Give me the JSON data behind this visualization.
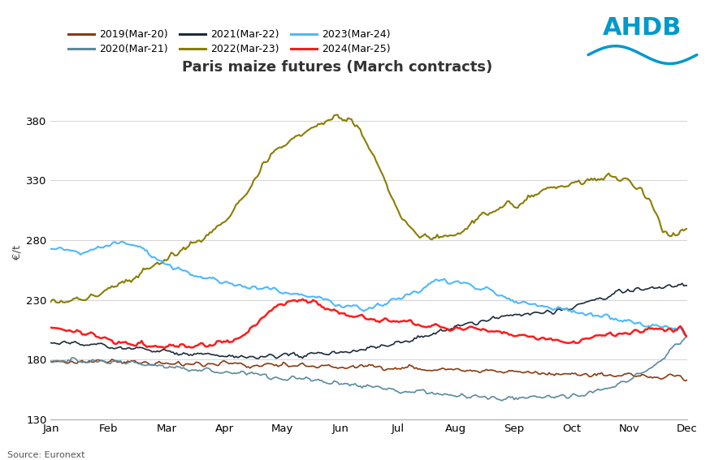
{
  "title": "Paris maize futures (March contracts)",
  "ylabel": "€/t",
  "source": "Source: Euronext",
  "ylim": [
    130,
    410
  ],
  "yticks": [
    130,
    180,
    230,
    280,
    330,
    380
  ],
  "months": [
    "Jan",
    "Feb",
    "Mar",
    "Apr",
    "May",
    "Jun",
    "Jul",
    "Aug",
    "Sep",
    "Oct",
    "Nov",
    "Dec"
  ],
  "background_color": "#FFFFFF",
  "grid_color": "#CCCCCC",
  "title_fontsize": 13,
  "axis_fontsize": 9.5,
  "legend_fontsize": 9,
  "series_order": [
    "2019(Mar-20)",
    "2020(Mar-21)",
    "2021(Mar-22)",
    "2022(Mar-23)",
    "2023(Mar-24)",
    "2024(Mar-25)"
  ],
  "series": {
    "2019(Mar-20)": {
      "color": "#8B3A0F",
      "linewidth": 1.2,
      "key_x": [
        0,
        15,
        30,
        45,
        60,
        75,
        90,
        105,
        120,
        135,
        150,
        165,
        180,
        195,
        210,
        225,
        240,
        255,
        270,
        285,
        300,
        315,
        330,
        345,
        364
      ],
      "key_y": [
        179,
        179,
        179,
        178,
        178,
        177,
        177,
        176,
        176,
        175,
        175,
        174,
        174,
        173,
        173,
        172,
        171,
        170,
        170,
        169,
        168,
        167,
        167,
        166,
        165
      ]
    },
    "2020(Mar-21)": {
      "color": "#5A8A9F",
      "linewidth": 1.2,
      "key_x": [
        0,
        15,
        30,
        45,
        60,
        75,
        90,
        105,
        120,
        135,
        150,
        165,
        180,
        195,
        210,
        225,
        240,
        255,
        270,
        285,
        300,
        315,
        330,
        345,
        364
      ],
      "key_y": [
        180,
        179,
        178,
        177,
        175,
        173,
        171,
        169,
        167,
        165,
        163,
        160,
        158,
        155,
        153,
        151,
        149,
        148,
        148,
        148,
        150,
        155,
        163,
        175,
        200
      ]
    },
    "2021(Mar-22)": {
      "color": "#1C2B3A",
      "linewidth": 1.2,
      "key_x": [
        0,
        15,
        30,
        45,
        60,
        75,
        90,
        105,
        120,
        135,
        150,
        165,
        180,
        195,
        210,
        225,
        240,
        255,
        270,
        285,
        300,
        315,
        330,
        345,
        364
      ],
      "key_y": [
        194,
        193,
        192,
        190,
        188,
        186,
        184,
        183,
        183,
        183,
        184,
        186,
        189,
        193,
        198,
        204,
        210,
        215,
        218,
        220,
        225,
        232,
        238,
        240,
        242
      ]
    },
    "2022(Mar-23)": {
      "color": "#8B7D00",
      "linewidth": 1.5,
      "key_x": [
        0,
        10,
        20,
        30,
        40,
        50,
        60,
        70,
        80,
        90,
        100,
        110,
        118,
        122,
        130,
        140,
        150,
        160,
        165,
        170,
        175,
        180,
        185,
        190,
        195,
        200,
        210,
        220,
        230,
        240,
        250,
        260,
        270,
        280,
        290,
        300,
        310,
        320,
        330,
        340,
        345,
        350,
        355,
        360,
        364
      ],
      "key_y": [
        228,
        229,
        232,
        237,
        244,
        252,
        260,
        268,
        275,
        285,
        298,
        315,
        332,
        345,
        355,
        365,
        375,
        381,
        383,
        381,
        375,
        362,
        350,
        333,
        315,
        300,
        285,
        282,
        285,
        295,
        302,
        308,
        313,
        320,
        325,
        328,
        330,
        333,
        330,
        318,
        305,
        287,
        283,
        286,
        290
      ]
    },
    "2023(Mar-24)": {
      "color": "#4DB8FF",
      "linewidth": 1.5,
      "key_x": [
        0,
        10,
        20,
        30,
        40,
        50,
        60,
        70,
        80,
        90,
        100,
        110,
        120,
        130,
        140,
        150,
        160,
        170,
        180,
        190,
        200,
        210,
        215,
        220,
        230,
        240,
        250,
        260,
        270,
        280,
        290,
        300,
        310,
        320,
        330,
        340,
        350,
        360,
        364
      ],
      "key_y": [
        273,
        272,
        270,
        275,
        278,
        275,
        265,
        258,
        252,
        248,
        244,
        242,
        240,
        238,
        235,
        232,
        228,
        225,
        222,
        225,
        232,
        238,
        243,
        248,
        245,
        242,
        238,
        232,
        228,
        225,
        222,
        220,
        218,
        215,
        212,
        210,
        208,
        205,
        200
      ]
    },
    "2024(Mar-25)": {
      "color": "#FF1A1A",
      "linewidth": 1.8,
      "key_x": [
        0,
        10,
        20,
        30,
        40,
        50,
        60,
        70,
        80,
        90,
        100,
        110,
        118,
        125,
        130,
        140,
        150,
        160,
        170,
        180,
        190,
        200,
        210,
        220,
        230,
        240,
        250,
        260,
        270,
        280,
        290,
        300,
        310,
        320,
        330,
        340,
        350,
        360,
        364
      ],
      "key_y": [
        207,
        205,
        202,
        198,
        194,
        192,
        191,
        191,
        192,
        193,
        195,
        200,
        210,
        220,
        226,
        230,
        228,
        222,
        218,
        215,
        213,
        212,
        210,
        208,
        207,
        206,
        204,
        202,
        200,
        198,
        196,
        195,
        198,
        200,
        202,
        205,
        206,
        205,
        200
      ]
    }
  }
}
